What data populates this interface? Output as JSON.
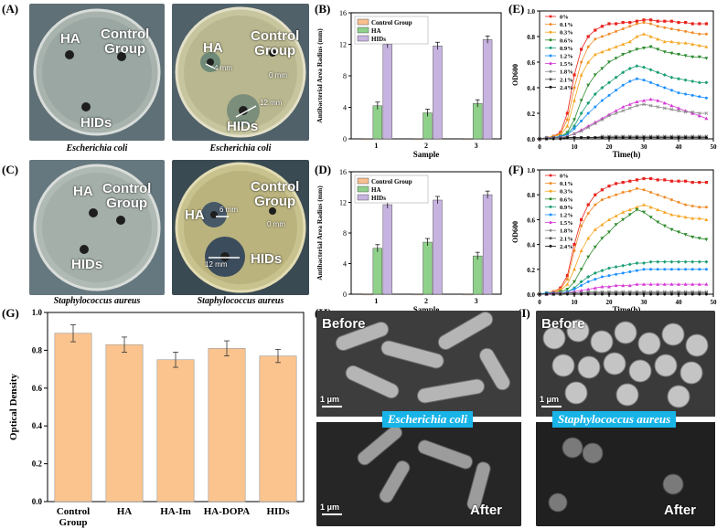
{
  "panels": {
    "A": {
      "label": "(A)",
      "caption": "Escherichia coli",
      "ha": "HA",
      "control": "Control\nGroup",
      "hids": "HIDs"
    },
    "A2": {
      "caption": "Escherichia coli",
      "ha": "HA",
      "control": "Control\nGroup",
      "hids": "HIDs",
      "zone1": "4 mm",
      "zone2": "12 mm",
      "zone0": "0 mm"
    },
    "C": {
      "label": "(C)",
      "caption": "Staphylococcus aureus",
      "ha": "HA",
      "control": "Control\nGroup",
      "hids": "HIDs"
    },
    "C2": {
      "caption": "Staphylococcus aureus",
      "ha": "HA",
      "control": "Control\nGroup",
      "hids": "HIDs",
      "zone1": "6 mm",
      "zone2": "12 mm",
      "zone0": "0 mm"
    },
    "B": {
      "label": "(B)"
    },
    "D": {
      "label": "(D)"
    },
    "E": {
      "label": "(E)"
    },
    "F": {
      "label": "(F)"
    },
    "G": {
      "label": "(G)"
    },
    "H": {
      "label": "(H)",
      "before": "Before",
      "after": "After",
      "scale": "1 μm",
      "species": "Escherichia coli"
    },
    "I": {
      "label": "(I)",
      "before": "Before",
      "after": "After",
      "scale": "1 μm",
      "species": "Staphylococcus aureus"
    }
  },
  "chart_data": [
    {
      "id": "B",
      "type": "bar",
      "title": "",
      "xlabel": "Sample",
      "ylabel": "Antibacterial Area Radius (mm)",
      "categories": [
        "1",
        "2",
        "3"
      ],
      "ylim": [
        0,
        16
      ],
      "yticks": [
        "0",
        "4",
        "8",
        "12",
        "16"
      ],
      "series": [
        {
          "name": "Control Group",
          "values": [
            0,
            0,
            0
          ],
          "color": "#f9c08e"
        },
        {
          "name": "HA",
          "values": [
            4.2,
            3.3,
            4.5
          ],
          "color": "#8fd18a"
        },
        {
          "name": "HIDs",
          "values": [
            12.0,
            11.8,
            12.6
          ],
          "color": "#c7b3e0"
        }
      ]
    },
    {
      "id": "D",
      "type": "bar",
      "title": "",
      "xlabel": "Sample",
      "ylabel": "Antibacterial Area Radius (mm)",
      "categories": [
        "1",
        "2",
        "3"
      ],
      "ylim": [
        0,
        16
      ],
      "yticks": [
        "0",
        "4",
        "8",
        "12",
        "16"
      ],
      "series": [
        {
          "name": "Control Group",
          "values": [
            0,
            0,
            0
          ],
          "color": "#f9c08e"
        },
        {
          "name": "HA",
          "values": [
            6.0,
            6.8,
            5.0
          ],
          "color": "#8fd18a"
        },
        {
          "name": "HIDs",
          "values": [
            11.7,
            12.3,
            13.0
          ],
          "color": "#c7b3e0"
        }
      ]
    },
    {
      "id": "E",
      "type": "line",
      "xlabel": "Time(h)",
      "ylabel": "OD600",
      "xlim": [
        0,
        50
      ],
      "ylim": [
        0,
        1.0
      ],
      "xticks": [
        "0",
        "10",
        "20",
        "30",
        "40",
        "50"
      ],
      "yticks": [
        "0.0",
        "0.2",
        "0.4",
        "0.6",
        "0.8",
        "1.0"
      ],
      "x": [
        0,
        2,
        4,
        6,
        8,
        10,
        12,
        14,
        16,
        18,
        20,
        22,
        24,
        26,
        28,
        30,
        32,
        34,
        36,
        38,
        40,
        42,
        44,
        46,
        48
      ],
      "series": [
        {
          "name": "0%",
          "color": "#e8231f",
          "values": [
            0,
            0.01,
            0.02,
            0.05,
            0.2,
            0.5,
            0.7,
            0.8,
            0.85,
            0.88,
            0.9,
            0.9,
            0.91,
            0.91,
            0.92,
            0.93,
            0.93,
            0.92,
            0.92,
            0.92,
            0.91,
            0.91,
            0.9,
            0.9,
            0.9
          ]
        },
        {
          "name": "0.1%",
          "color": "#f28c28",
          "values": [
            0,
            0.01,
            0.02,
            0.04,
            0.15,
            0.4,
            0.6,
            0.72,
            0.78,
            0.8,
            0.82,
            0.84,
            0.86,
            0.88,
            0.9,
            0.91,
            0.9,
            0.88,
            0.87,
            0.86,
            0.85,
            0.84,
            0.83,
            0.82,
            0.82
          ]
        },
        {
          "name": "0.3%",
          "color": "#f5a623",
          "values": [
            0,
            0.01,
            0.02,
            0.03,
            0.1,
            0.3,
            0.5,
            0.6,
            0.66,
            0.68,
            0.7,
            0.72,
            0.74,
            0.76,
            0.8,
            0.82,
            0.8,
            0.78,
            0.76,
            0.76,
            0.75,
            0.75,
            0.74,
            0.73,
            0.72
          ]
        },
        {
          "name": "0.6%",
          "color": "#2e8b2e",
          "values": [
            0,
            0.01,
            0.01,
            0.02,
            0.05,
            0.15,
            0.3,
            0.42,
            0.5,
            0.55,
            0.6,
            0.63,
            0.66,
            0.68,
            0.7,
            0.71,
            0.72,
            0.7,
            0.68,
            0.67,
            0.66,
            0.65,
            0.64,
            0.64,
            0.63
          ]
        },
        {
          "name": "0.9%",
          "color": "#1b9e77",
          "values": [
            0,
            0.01,
            0.01,
            0.02,
            0.04,
            0.1,
            0.2,
            0.28,
            0.35,
            0.4,
            0.44,
            0.48,
            0.52,
            0.55,
            0.57,
            0.56,
            0.54,
            0.52,
            0.5,
            0.48,
            0.47,
            0.46,
            0.45,
            0.44,
            0.44
          ]
        },
        {
          "name": "1.2%",
          "color": "#1e90ff",
          "values": [
            0,
            0.01,
            0.01,
            0.02,
            0.03,
            0.08,
            0.14,
            0.2,
            0.25,
            0.3,
            0.34,
            0.38,
            0.42,
            0.45,
            0.47,
            0.46,
            0.44,
            0.42,
            0.4,
            0.38,
            0.36,
            0.35,
            0.34,
            0.33,
            0.32
          ]
        },
        {
          "name": "1.5%",
          "color": "#d63ad6",
          "values": [
            0,
            0.01,
            0.01,
            0.01,
            0.02,
            0.04,
            0.07,
            0.1,
            0.13,
            0.16,
            0.19,
            0.22,
            0.25,
            0.27,
            0.29,
            0.3,
            0.31,
            0.3,
            0.28,
            0.26,
            0.24,
            0.22,
            0.2,
            0.18,
            0.16
          ]
        },
        {
          "name": "1.8%",
          "color": "#888888",
          "values": [
            0,
            0.01,
            0.01,
            0.01,
            0.02,
            0.04,
            0.06,
            0.09,
            0.12,
            0.15,
            0.18,
            0.2,
            0.22,
            0.24,
            0.26,
            0.27,
            0.26,
            0.25,
            0.24,
            0.23,
            0.22,
            0.21,
            0.21,
            0.2,
            0.2
          ]
        },
        {
          "name": "2.1%",
          "color": "#555555",
          "values": [
            0,
            0.0,
            0.01,
            0.01,
            0.01,
            0.01,
            0.01,
            0.01,
            0.01,
            0.02,
            0.02,
            0.02,
            0.02,
            0.02,
            0.02,
            0.02,
            0.02,
            0.02,
            0.02,
            0.02,
            0.02,
            0.02,
            0.02,
            0.02,
            0.02
          ]
        },
        {
          "name": "2.4%",
          "color": "#111111",
          "values": [
            0,
            0.0,
            0.0,
            0.0,
            0.01,
            0.01,
            0.01,
            0.01,
            0.01,
            0.01,
            0.01,
            0.01,
            0.01,
            0.01,
            0.01,
            0.01,
            0.01,
            0.01,
            0.01,
            0.01,
            0.01,
            0.01,
            0.01,
            0.01,
            0.01
          ]
        }
      ]
    },
    {
      "id": "F",
      "type": "line",
      "xlabel": "Time(h)",
      "ylabel": "OD600",
      "xlim": [
        0,
        50
      ],
      "ylim": [
        0,
        1.0
      ],
      "xticks": [
        "0",
        "10",
        "20",
        "30",
        "40",
        "50"
      ],
      "yticks": [
        "0.0",
        "0.2",
        "0.4",
        "0.6",
        "0.8",
        "1.0"
      ],
      "x": [
        0,
        2,
        4,
        6,
        8,
        10,
        12,
        14,
        16,
        18,
        20,
        22,
        24,
        26,
        28,
        30,
        32,
        34,
        36,
        38,
        40,
        42,
        44,
        46,
        48
      ],
      "series": [
        {
          "name": "0%",
          "color": "#e8231f",
          "values": [
            0,
            0.01,
            0.02,
            0.05,
            0.15,
            0.4,
            0.6,
            0.72,
            0.8,
            0.84,
            0.87,
            0.89,
            0.9,
            0.91,
            0.92,
            0.93,
            0.93,
            0.92,
            0.92,
            0.91,
            0.91,
            0.91,
            0.9,
            0.9,
            0.9
          ]
        },
        {
          "name": "0.1%",
          "color": "#f28c28",
          "values": [
            0,
            0.01,
            0.02,
            0.04,
            0.12,
            0.35,
            0.55,
            0.65,
            0.72,
            0.76,
            0.78,
            0.8,
            0.82,
            0.83,
            0.85,
            0.84,
            0.82,
            0.8,
            0.78,
            0.76,
            0.74,
            0.72,
            0.71,
            0.7,
            0.7
          ]
        },
        {
          "name": "0.3%",
          "color": "#f5a623",
          "values": [
            0,
            0.01,
            0.01,
            0.03,
            0.08,
            0.2,
            0.35,
            0.45,
            0.52,
            0.56,
            0.6,
            0.63,
            0.66,
            0.68,
            0.7,
            0.72,
            0.7,
            0.68,
            0.66,
            0.64,
            0.63,
            0.62,
            0.61,
            0.61,
            0.6
          ]
        },
        {
          "name": "0.6%",
          "color": "#2e8b2e",
          "values": [
            0,
            0.01,
            0.01,
            0.02,
            0.04,
            0.1,
            0.2,
            0.3,
            0.38,
            0.45,
            0.5,
            0.56,
            0.6,
            0.64,
            0.68,
            0.66,
            0.62,
            0.58,
            0.55,
            0.52,
            0.5,
            0.48,
            0.46,
            0.45,
            0.44
          ]
        },
        {
          "name": "0.9%",
          "color": "#1b9e77",
          "values": [
            0,
            0.01,
            0.01,
            0.01,
            0.02,
            0.05,
            0.1,
            0.14,
            0.17,
            0.19,
            0.21,
            0.22,
            0.23,
            0.24,
            0.25,
            0.25,
            0.26,
            0.26,
            0.26,
            0.26,
            0.26,
            0.26,
            0.26,
            0.26,
            0.26
          ]
        },
        {
          "name": "1.2%",
          "color": "#1e90ff",
          "values": [
            0,
            0.01,
            0.01,
            0.01,
            0.02,
            0.04,
            0.07,
            0.1,
            0.12,
            0.14,
            0.15,
            0.16,
            0.17,
            0.18,
            0.19,
            0.2,
            0.2,
            0.2,
            0.2,
            0.2,
            0.2,
            0.2,
            0.2,
            0.2,
            0.2
          ]
        },
        {
          "name": "1.5%",
          "color": "#d63ad6",
          "values": [
            0,
            0.0,
            0.01,
            0.01,
            0.01,
            0.02,
            0.03,
            0.04,
            0.05,
            0.06,
            0.06,
            0.07,
            0.07,
            0.07,
            0.08,
            0.08,
            0.08,
            0.08,
            0.08,
            0.08,
            0.08,
            0.08,
            0.08,
            0.08,
            0.08
          ]
        },
        {
          "name": "1.8%",
          "color": "#888888",
          "values": [
            0,
            0.0,
            0.0,
            0.01,
            0.01,
            0.01,
            0.01,
            0.02,
            0.02,
            0.02,
            0.02,
            0.02,
            0.02,
            0.02,
            0.02,
            0.02,
            0.02,
            0.02,
            0.02,
            0.02,
            0.02,
            0.02,
            0.02,
            0.02,
            0.02
          ]
        },
        {
          "name": "2.1%",
          "color": "#555555",
          "values": [
            0,
            0.0,
            0.0,
            0.0,
            0.01,
            0.01,
            0.01,
            0.01,
            0.01,
            0.01,
            0.01,
            0.01,
            0.01,
            0.01,
            0.01,
            0.01,
            0.01,
            0.01,
            0.01,
            0.01,
            0.01,
            0.01,
            0.01,
            0.01,
            0.01
          ]
        },
        {
          "name": "2.4%",
          "color": "#111111",
          "values": [
            0,
            0.0,
            0.0,
            0.0,
            0.0,
            0.0,
            0.0,
            0.0,
            0.0,
            0.0,
            0.0,
            0.0,
            0.0,
            0.0,
            0.0,
            0.0,
            0.0,
            0.0,
            0.0,
            0.0,
            0.0,
            0.0,
            0.0,
            0.0,
            0.0
          ]
        }
      ]
    },
    {
      "id": "G",
      "type": "bar",
      "xlabel": "",
      "ylabel": "Optical Density",
      "categories": [
        "Control\nGroup",
        "HA",
        "HA-Im",
        "HA-DOPA",
        "HIDs"
      ],
      "values": [
        0.89,
        0.83,
        0.75,
        0.81,
        0.77
      ],
      "errors": [
        0.045,
        0.04,
        0.04,
        0.04,
        0.035
      ],
      "ylim": [
        0,
        1.0
      ],
      "yticks": [
        "0.0",
        "0.2",
        "0.4",
        "0.6",
        "0.8",
        "1.0"
      ],
      "color": "#fbc48f"
    }
  ]
}
